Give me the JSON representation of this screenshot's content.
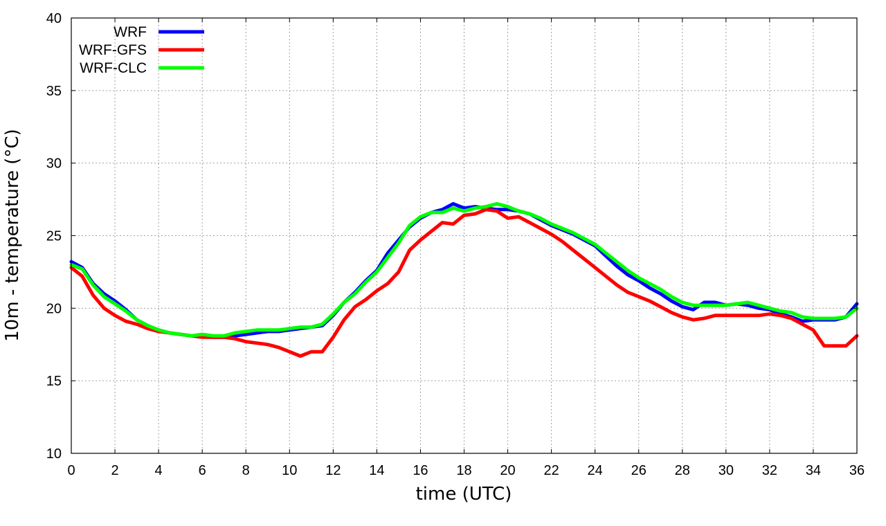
{
  "chart_data": {
    "type": "line",
    "title": "",
    "xlabel": "time (UTC)",
    "ylabel": "10m - temperature (°C)",
    "xlim": [
      0,
      36
    ],
    "ylim": [
      10,
      40
    ],
    "xticks": [
      0,
      2,
      4,
      6,
      8,
      10,
      12,
      14,
      16,
      18,
      20,
      22,
      24,
      26,
      28,
      30,
      32,
      34,
      36
    ],
    "yticks": [
      10,
      15,
      20,
      25,
      30,
      35,
      40
    ],
    "grid": true,
    "legend_position": "top-left",
    "series": [
      {
        "name": "WRF",
        "color": "#0000ff",
        "x": [
          0,
          0.5,
          1,
          1.5,
          2,
          2.5,
          3,
          3.5,
          4,
          4.5,
          5,
          5.5,
          6,
          6.5,
          7,
          7.5,
          8,
          8.5,
          9,
          9.5,
          10,
          10.5,
          11,
          11.5,
          12,
          12.5,
          13,
          13.5,
          14,
          14.5,
          15,
          15.5,
          16,
          16.5,
          17,
          17.5,
          18,
          18.5,
          19,
          19.5,
          20,
          20.5,
          21,
          21.5,
          22,
          22.5,
          23,
          23.5,
          24,
          24.5,
          25,
          25.5,
          26,
          26.5,
          27,
          27.5,
          28,
          28.5,
          29,
          29.5,
          30,
          30.5,
          31,
          31.5,
          32,
          32.5,
          33,
          33.5,
          34,
          34.5,
          35,
          35.5,
          36
        ],
        "values": [
          23.2,
          22.8,
          21.7,
          21.0,
          20.5,
          19.9,
          19.2,
          18.8,
          18.5,
          18.3,
          18.2,
          18.1,
          18.1,
          18.0,
          18.0,
          18.1,
          18.2,
          18.3,
          18.4,
          18.4,
          18.5,
          18.6,
          18.7,
          18.8,
          19.5,
          20.4,
          21.1,
          21.9,
          22.6,
          23.8,
          24.7,
          25.6,
          26.2,
          26.6,
          26.8,
          27.2,
          26.9,
          27.0,
          26.9,
          26.8,
          26.8,
          26.7,
          26.5,
          26.1,
          25.7,
          25.4,
          25.1,
          24.7,
          24.3,
          23.6,
          22.9,
          22.3,
          21.9,
          21.4,
          21.0,
          20.5,
          20.1,
          19.9,
          20.4,
          20.4,
          20.2,
          20.3,
          20.2,
          20.0,
          19.9,
          19.6,
          19.4,
          19.1,
          19.2,
          19.2,
          19.2,
          19.4,
          20.3
        ]
      },
      {
        "name": "WRF-GFS",
        "color": "#ff0000",
        "x": [
          0,
          0.5,
          1,
          1.5,
          2,
          2.5,
          3,
          3.5,
          4,
          4.5,
          5,
          5.5,
          6,
          6.5,
          7,
          7.5,
          8,
          8.5,
          9,
          9.5,
          10,
          10.5,
          11,
          11.5,
          12,
          12.5,
          13,
          13.5,
          14,
          14.5,
          15,
          15.5,
          16,
          16.5,
          17,
          17.5,
          18,
          18.5,
          19,
          19.5,
          20,
          20.5,
          21,
          21.5,
          22,
          22.5,
          23,
          23.5,
          24,
          24.5,
          25,
          25.5,
          26,
          26.5,
          27,
          27.5,
          28,
          28.5,
          29,
          29.5,
          30,
          30.5,
          31,
          31.5,
          32,
          32.5,
          33,
          33.5,
          34,
          34.5,
          35,
          35.5,
          36
        ],
        "values": [
          22.8,
          22.2,
          20.9,
          20.0,
          19.5,
          19.1,
          18.9,
          18.6,
          18.4,
          18.3,
          18.2,
          18.1,
          18.0,
          18.0,
          18.0,
          17.9,
          17.7,
          17.6,
          17.5,
          17.3,
          17.0,
          16.7,
          17.0,
          17.0,
          18.0,
          19.2,
          20.1,
          20.6,
          21.2,
          21.7,
          22.5,
          24.0,
          24.7,
          25.3,
          25.9,
          25.8,
          26.4,
          26.5,
          26.8,
          26.7,
          26.2,
          26.3,
          25.9,
          25.5,
          25.1,
          24.6,
          24.0,
          23.4,
          22.8,
          22.2,
          21.6,
          21.1,
          20.8,
          20.5,
          20.1,
          19.7,
          19.4,
          19.2,
          19.3,
          19.5,
          19.5,
          19.5,
          19.5,
          19.5,
          19.6,
          19.5,
          19.3,
          18.9,
          18.5,
          17.4,
          17.4,
          17.4,
          18.1
        ]
      },
      {
        "name": "WRF-CLC",
        "color": "#00ff00",
        "x": [
          0,
          0.5,
          1,
          1.5,
          2,
          2.5,
          3,
          3.5,
          4,
          4.5,
          5,
          5.5,
          6,
          6.5,
          7,
          7.5,
          8,
          8.5,
          9,
          9.5,
          10,
          10.5,
          11,
          11.5,
          12,
          12.5,
          13,
          13.5,
          14,
          14.5,
          15,
          15.5,
          16,
          16.5,
          17,
          17.5,
          18,
          18.5,
          19,
          19.5,
          20,
          20.5,
          21,
          21.5,
          22,
          22.5,
          23,
          23.5,
          24,
          24.5,
          25,
          25.5,
          26,
          26.5,
          27,
          27.5,
          28,
          28.5,
          29,
          29.5,
          30,
          30.5,
          31,
          31.5,
          32,
          32.5,
          33,
          33.5,
          34,
          34.5,
          35,
          35.5,
          36
        ],
        "values": [
          23.0,
          22.7,
          21.6,
          20.8,
          20.3,
          19.8,
          19.2,
          18.8,
          18.5,
          18.3,
          18.2,
          18.1,
          18.2,
          18.1,
          18.1,
          18.3,
          18.4,
          18.5,
          18.5,
          18.5,
          18.6,
          18.7,
          18.7,
          18.9,
          19.6,
          20.4,
          21.0,
          21.8,
          22.5,
          23.5,
          24.5,
          25.7,
          26.3,
          26.6,
          26.6,
          26.9,
          26.7,
          26.9,
          27.0,
          27.2,
          27.0,
          26.7,
          26.5,
          26.2,
          25.8,
          25.5,
          25.2,
          24.8,
          24.4,
          23.8,
          23.2,
          22.6,
          22.1,
          21.7,
          21.3,
          20.8,
          20.4,
          20.2,
          20.2,
          20.2,
          20.2,
          20.3,
          20.4,
          20.2,
          20.0,
          19.8,
          19.7,
          19.4,
          19.3,
          19.3,
          19.3,
          19.4,
          20.0
        ]
      }
    ]
  }
}
